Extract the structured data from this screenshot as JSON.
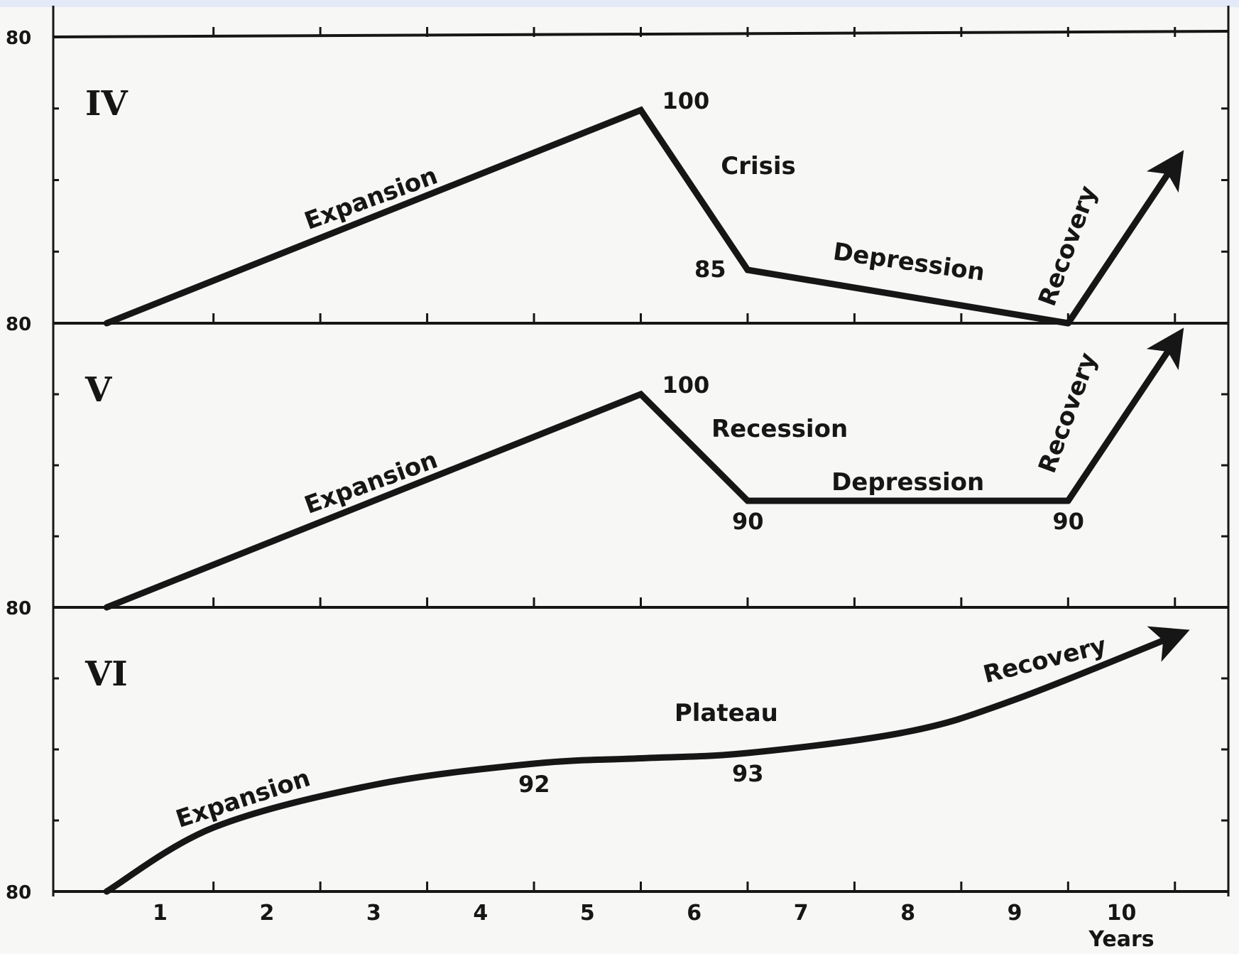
{
  "chart_data": {
    "type": "line",
    "x_unit": "Years",
    "x_ticks": [
      "1",
      "2",
      "3",
      "4",
      "5",
      "6",
      "7",
      "8",
      "9",
      "10"
    ],
    "panels": [
      {
        "id": "IV",
        "y_base_label": "80",
        "points": [
          {
            "x": 0.5,
            "y": 80
          },
          {
            "x": 5.5,
            "y": 100
          },
          {
            "x": 6.5,
            "y": 85
          },
          {
            "x": 9.5,
            "y": 80
          }
        ],
        "arrow_to": {
          "x": 10.5,
          "y": 95
        },
        "value_labels": [
          {
            "text": "100",
            "x": 5.5,
            "y": 100
          },
          {
            "text": "85",
            "x": 6.5,
            "y": 85
          }
        ],
        "phases": [
          {
            "text": "Expansion",
            "x": 3.0,
            "y": 91
          },
          {
            "text": "Crisis",
            "x": 6.6,
            "y": 94
          },
          {
            "text": "Depression",
            "x": 8.0,
            "y": 85
          },
          {
            "text": "Recovery",
            "x": 9.7,
            "y": 87
          }
        ]
      },
      {
        "id": "V",
        "y_base_label": "80",
        "points": [
          {
            "x": 0.5,
            "y": 80
          },
          {
            "x": 5.5,
            "y": 100
          },
          {
            "x": 6.5,
            "y": 90
          },
          {
            "x": 9.5,
            "y": 90
          }
        ],
        "arrow_to": {
          "x": 10.5,
          "y": 105
        },
        "value_labels": [
          {
            "text": "100",
            "x": 5.5,
            "y": 100
          },
          {
            "text": "90",
            "x": 6.5,
            "y": 90
          },
          {
            "text": "90",
            "x": 9.5,
            "y": 90
          }
        ],
        "phases": [
          {
            "text": "Expansion",
            "x": 3.0,
            "y": 91
          },
          {
            "text": "Recession",
            "x": 6.8,
            "y": 96
          },
          {
            "text": "Depression",
            "x": 8.0,
            "y": 91
          },
          {
            "text": "Recovery",
            "x": 9.7,
            "y": 98
          }
        ]
      },
      {
        "id": "VI",
        "y_base_label": "80",
        "points": [
          {
            "x": 0.5,
            "y": 80
          },
          {
            "x": 1.5,
            "y": 86
          },
          {
            "x": 3.0,
            "y": 90
          },
          {
            "x": 4.5,
            "y": 92
          },
          {
            "x": 5.5,
            "y": 92.5
          },
          {
            "x": 6.5,
            "y": 93
          },
          {
            "x": 8.0,
            "y": 95
          },
          {
            "x": 9.0,
            "y": 98
          },
          {
            "x": 10.5,
            "y": 104
          }
        ],
        "arrow_to": {
          "x": 10.5,
          "y": 104
        },
        "value_labels": [
          {
            "text": "92",
            "x": 4.5,
            "y": 92
          },
          {
            "text": "93",
            "x": 6.5,
            "y": 93
          }
        ],
        "phases": [
          {
            "text": "Expansion",
            "x": 1.8,
            "y": 88
          },
          {
            "text": "Plateau",
            "x": 6.3,
            "y": 96
          },
          {
            "text": "Recovery",
            "x": 9.3,
            "y": 101
          }
        ]
      }
    ],
    "y_top_label": "80"
  }
}
